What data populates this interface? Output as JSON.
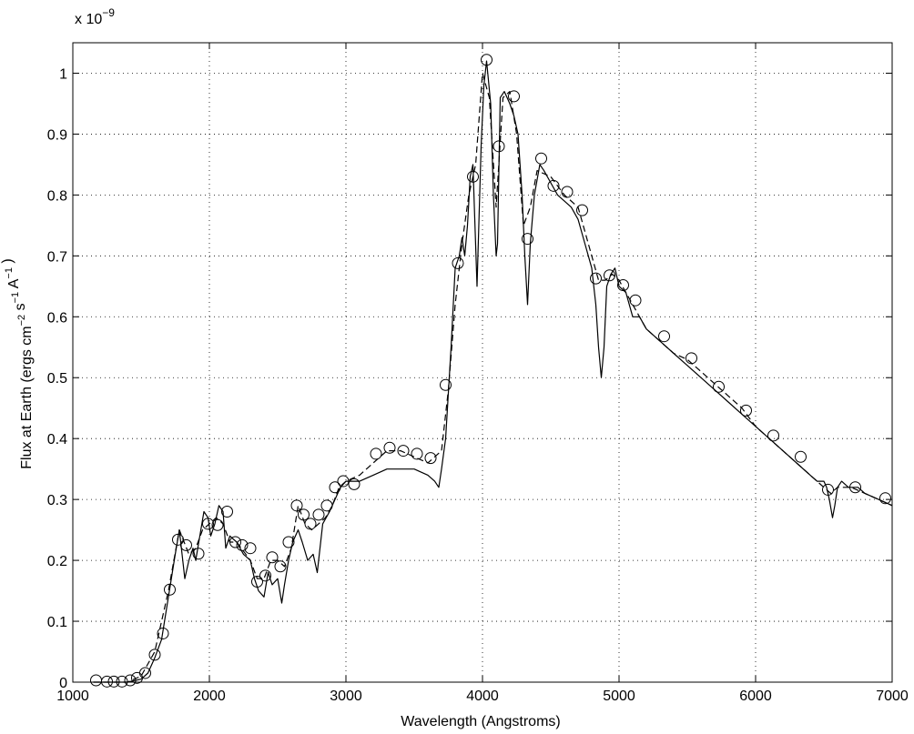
{
  "chart_data": {
    "type": "line",
    "title": "",
    "xlabel": "Wavelength (Angstroms)",
    "ylabel": {
      "parts": [
        {
          "t": "Flux at Earth (ergs cm",
          "sup": false
        },
        {
          "t": "−2",
          "sup": true
        },
        {
          "t": " s",
          "sup": false
        },
        {
          "t": "−1",
          "sup": true
        },
        {
          "t": " A",
          "sup": false
        },
        {
          "t": "−1",
          "sup": true
        },
        {
          "t": " )",
          "sup": false
        }
      ]
    },
    "y_multiplier": {
      "base": "x 10",
      "exponent": "−9"
    },
    "xlim": [
      1000,
      7000
    ],
    "ylim": [
      0,
      1.05
    ],
    "grid": true,
    "xticks": [
      1000,
      2000,
      3000,
      4000,
      5000,
      6000,
      7000
    ],
    "xtick_labels": [
      "1000",
      "2000",
      "3000",
      "4000",
      "5000",
      "6000",
      "7000"
    ],
    "yticks": [
      0,
      0.1,
      0.2,
      0.3,
      0.4,
      0.5,
      0.6,
      0.7,
      0.8,
      0.9,
      1.0
    ],
    "ytick_labels": [
      "0",
      "0.1",
      "0.2",
      "0.3",
      "0.4",
      "0.5",
      "0.6",
      "0.7",
      "0.8",
      "0.9",
      "1"
    ],
    "series": [
      {
        "style": "solid",
        "color": "#000000",
        "x": [
          1150,
          1300,
          1400,
          1500,
          1550,
          1600,
          1650,
          1700,
          1750,
          1780,
          1800,
          1820,
          1850,
          1880,
          1900,
          1930,
          1960,
          1990,
          2010,
          2040,
          2070,
          2100,
          2120,
          2150,
          2200,
          2250,
          2300,
          2330,
          2360,
          2400,
          2430,
          2460,
          2500,
          2530,
          2550,
          2580,
          2610,
          2650,
          2680,
          2720,
          2760,
          2790,
          2830,
          2880,
          2920,
          2960,
          3000,
          3050,
          3100,
          3200,
          3300,
          3400,
          3500,
          3600,
          3650,
          3680,
          3700,
          3730,
          3770,
          3800,
          3830,
          3850,
          3870,
          3890,
          3910,
          3930,
          3960,
          3990,
          4010,
          4030,
          4060,
          4080,
          4100,
          4110,
          4130,
          4160,
          4180,
          4200,
          4230,
          4260,
          4290,
          4310,
          4330,
          4350,
          4380,
          4420,
          4450,
          4500,
          4550,
          4600,
          4650,
          4700,
          4750,
          4800,
          4830,
          4850,
          4870,
          4890,
          4910,
          4940,
          4970,
          5000,
          5050,
          5100,
          5150,
          5200,
          5300,
          5400,
          5500,
          5600,
          5700,
          5800,
          5900,
          6000,
          6100,
          6200,
          6300,
          6400,
          6450,
          6500,
          6520,
          6540,
          6563,
          6580,
          6600,
          6630,
          6680,
          6750,
          6800,
          6900,
          7000
        ],
        "y": [
          0,
          0,
          0,
          0.005,
          0.015,
          0.04,
          0.07,
          0.14,
          0.21,
          0.25,
          0.21,
          0.17,
          0.2,
          0.22,
          0.2,
          0.24,
          0.28,
          0.27,
          0.24,
          0.26,
          0.29,
          0.28,
          0.22,
          0.24,
          0.23,
          0.21,
          0.2,
          0.17,
          0.15,
          0.14,
          0.18,
          0.16,
          0.17,
          0.13,
          0.16,
          0.2,
          0.23,
          0.25,
          0.23,
          0.2,
          0.21,
          0.18,
          0.26,
          0.28,
          0.3,
          0.32,
          0.33,
          0.33,
          0.33,
          0.34,
          0.35,
          0.35,
          0.35,
          0.34,
          0.33,
          0.32,
          0.35,
          0.4,
          0.55,
          0.68,
          0.7,
          0.73,
          0.7,
          0.75,
          0.83,
          0.85,
          0.65,
          0.88,
          0.98,
          1.02,
          0.95,
          0.8,
          0.7,
          0.72,
          0.96,
          0.97,
          0.96,
          0.95,
          0.93,
          0.9,
          0.8,
          0.7,
          0.62,
          0.72,
          0.8,
          0.85,
          0.84,
          0.82,
          0.8,
          0.79,
          0.78,
          0.76,
          0.72,
          0.68,
          0.62,
          0.55,
          0.5,
          0.55,
          0.65,
          0.67,
          0.68,
          0.65,
          0.64,
          0.6,
          0.6,
          0.58,
          0.56,
          0.54,
          0.52,
          0.5,
          0.48,
          0.46,
          0.44,
          0.42,
          0.4,
          0.38,
          0.36,
          0.34,
          0.33,
          0.33,
          0.32,
          0.3,
          0.27,
          0.29,
          0.32,
          0.33,
          0.32,
          0.32,
          0.31,
          0.3,
          0.29
        ]
      },
      {
        "style": "dashed",
        "color": "#000000",
        "x": [
          1150,
          1400,
          1500,
          1600,
          1700,
          1780,
          1850,
          1900,
          1950,
          2000,
          2050,
          2100,
          2150,
          2200,
          2300,
          2350,
          2400,
          2450,
          2500,
          2550,
          2600,
          2650,
          2700,
          2750,
          2800,
          2850,
          2900,
          2950,
          3000,
          3100,
          3200,
          3300,
          3400,
          3500,
          3600,
          3700,
          3750,
          3800,
          3850,
          3900,
          3950,
          4000,
          4050,
          4100,
          4150,
          4200,
          4250,
          4300,
          4350,
          4400,
          4500,
          4600,
          4700,
          4800,
          4850,
          4900,
          4950,
          5000,
          5100,
          5200,
          5300,
          5400,
          5500,
          5600,
          5700,
          5800,
          5900,
          6000,
          6100,
          6200,
          6300,
          6400,
          6500,
          6550,
          6600,
          6650,
          6700,
          6800,
          6900,
          7000
        ],
        "y": [
          0,
          0,
          0.01,
          0.05,
          0.15,
          0.25,
          0.21,
          0.22,
          0.25,
          0.26,
          0.27,
          0.26,
          0.23,
          0.23,
          0.2,
          0.17,
          0.17,
          0.2,
          0.2,
          0.19,
          0.22,
          0.29,
          0.26,
          0.25,
          0.26,
          0.27,
          0.29,
          0.32,
          0.33,
          0.34,
          0.36,
          0.38,
          0.38,
          0.37,
          0.36,
          0.38,
          0.48,
          0.62,
          0.72,
          0.8,
          0.85,
          1.0,
          0.96,
          0.78,
          0.96,
          0.97,
          0.9,
          0.75,
          0.78,
          0.84,
          0.83,
          0.8,
          0.78,
          0.7,
          0.66,
          0.66,
          0.67,
          0.66,
          0.62,
          0.58,
          0.56,
          0.54,
          0.53,
          0.51,
          0.49,
          0.47,
          0.45,
          0.42,
          0.4,
          0.38,
          0.36,
          0.34,
          0.32,
          0.31,
          0.32,
          0.32,
          0.32,
          0.31,
          0.3,
          0.29
        ]
      },
      {
        "style": "circles",
        "color": "#000000",
        "x": [
          1170,
          1250,
          1300,
          1360,
          1420,
          1470,
          1530,
          1600,
          1660,
          1710,
          1770,
          1830,
          1920,
          1990,
          2060,
          2130,
          2190,
          2240,
          2300,
          2350,
          2410,
          2460,
          2520,
          2580,
          2640,
          2690,
          2740,
          2800,
          2860,
          2920,
          2980,
          3060,
          3220,
          3320,
          3420,
          3520,
          3620,
          3730,
          3820,
          3930,
          4030,
          4120,
          4230,
          4330,
          4430,
          4520,
          4620,
          4730,
          4830,
          4930,
          5030,
          5120,
          5330,
          5530,
          5730,
          5930,
          6130,
          6330,
          6530,
          6730,
          6950
        ],
        "y": [
          0.003,
          0.001,
          0.001,
          0.001,
          0.003,
          0.007,
          0.015,
          0.045,
          0.08,
          0.152,
          0.234,
          0.225,
          0.211,
          0.26,
          0.258,
          0.28,
          0.23,
          0.225,
          0.22,
          0.165,
          0.175,
          0.205,
          0.19,
          0.23,
          0.29,
          0.275,
          0.26,
          0.275,
          0.29,
          0.32,
          0.33,
          0.325,
          0.375,
          0.385,
          0.38,
          0.375,
          0.368,
          0.488,
          0.688,
          0.83,
          1.022,
          0.88,
          0.962,
          0.728,
          0.86,
          0.815,
          0.805,
          0.775,
          0.663,
          0.668,
          0.652,
          0.627,
          0.568,
          0.532,
          0.485,
          0.446,
          0.405,
          0.37,
          0.316,
          0.32,
          0.302
        ]
      }
    ]
  }
}
